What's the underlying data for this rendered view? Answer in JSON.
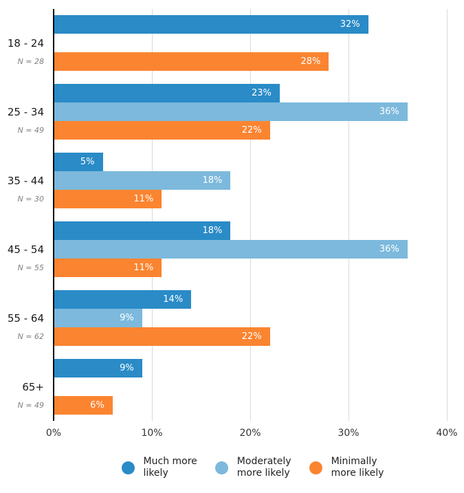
{
  "chart_data": {
    "type": "bar",
    "orientation": "horizontal",
    "title": "",
    "xlabel": "",
    "ylabel": "",
    "categories": [
      "18 - 24",
      "25 - 34",
      "35 - 44",
      "45 - 54",
      "55 - 64",
      "65+"
    ],
    "category_sublabels": [
      "N = 28",
      "N = 49",
      "N = 30",
      "N = 55",
      "N = 62",
      "N = 49"
    ],
    "series": [
      {
        "name": "Much more likely",
        "color": "#2A8BC7",
        "values": [
          32,
          23,
          5,
          18,
          14,
          9
        ]
      },
      {
        "name": "Moderately more likely",
        "color": "#7CB9DC",
        "values": [
          null,
          36,
          18,
          36,
          9,
          null
        ]
      },
      {
        "name": "Minimally more likely",
        "color": "#FB8430",
        "values": [
          28,
          22,
          11,
          11,
          22,
          6
        ]
      }
    ],
    "value_label_suffix": "%",
    "x_axis": {
      "ticks": [
        "0%",
        "10%",
        "20%",
        "30%",
        "40%"
      ],
      "min": 0,
      "max": 40
    },
    "grid": true,
    "legend_position": "bottom",
    "legend_items": [
      {
        "lines": [
          "Much more",
          "likely"
        ],
        "color": "#2A8BC7"
      },
      {
        "lines": [
          "Moderately",
          "more likely"
        ],
        "color": "#7CB9DC"
      },
      {
        "lines": [
          "Minimally",
          "more likely"
        ],
        "color": "#FB8430"
      }
    ]
  },
  "colors": {
    "axis_line": "#000000",
    "gridline": "#D9D9D9",
    "bar_label": "#FFFFFF",
    "category_label": "#1A1A1A",
    "sublabel": "#808080",
    "tick_label": "#333333",
    "legend_label": "#222222",
    "background": "#FFFFFF"
  }
}
